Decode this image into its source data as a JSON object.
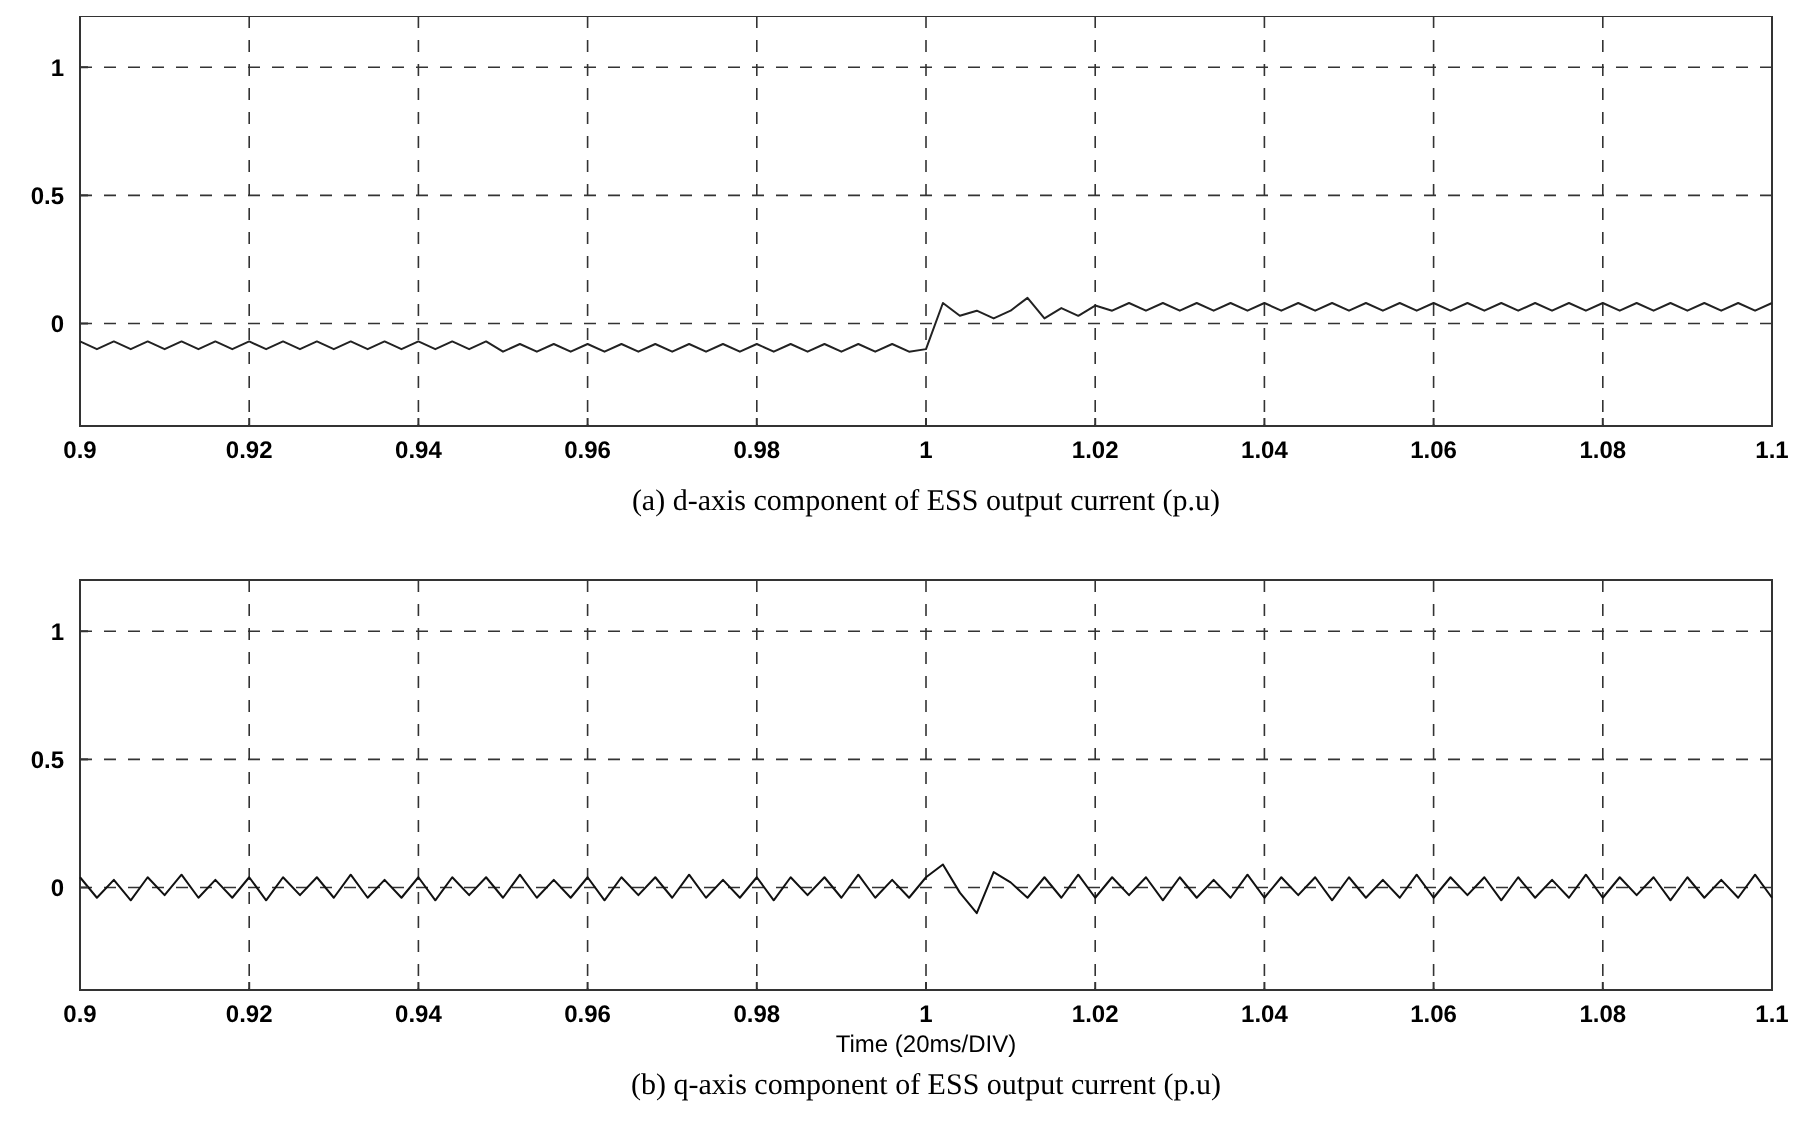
{
  "chart_data": [
    {
      "type": "line",
      "title": "(a) d-axis component of ESS output current (p.u)",
      "x": [
        0.9,
        0.902,
        0.904,
        0.906,
        0.908,
        0.91,
        0.912,
        0.914,
        0.916,
        0.918,
        0.92,
        0.922,
        0.924,
        0.926,
        0.928,
        0.93,
        0.932,
        0.934,
        0.936,
        0.938,
        0.94,
        0.942,
        0.944,
        0.946,
        0.948,
        0.95,
        0.952,
        0.954,
        0.956,
        0.958,
        0.96,
        0.962,
        0.964,
        0.966,
        0.968,
        0.97,
        0.972,
        0.974,
        0.976,
        0.978,
        0.98,
        0.982,
        0.984,
        0.986,
        0.988,
        0.99,
        0.992,
        0.994,
        0.996,
        0.998,
        1,
        1.002,
        1.004,
        1.006,
        1.008,
        1.01,
        1.012,
        1.014,
        1.016,
        1.018,
        1.02,
        1.022,
        1.024,
        1.026,
        1.028,
        1.03,
        1.032,
        1.034,
        1.036,
        1.038,
        1.04,
        1.042,
        1.044,
        1.046,
        1.048,
        1.05,
        1.052,
        1.054,
        1.056,
        1.058,
        1.06,
        1.062,
        1.064,
        1.066,
        1.068,
        1.07,
        1.072,
        1.074,
        1.076,
        1.078,
        1.08,
        1.082,
        1.084,
        1.086,
        1.088,
        1.09,
        1.092,
        1.094,
        1.096,
        1.098,
        1.1
      ],
      "series": [
        {
          "color": "#222222",
          "values": [
            -0.07,
            -0.1,
            -0.07,
            -0.1,
            -0.07,
            -0.1,
            -0.07,
            -0.1,
            -0.07,
            -0.1,
            -0.07,
            -0.1,
            -0.07,
            -0.1,
            -0.07,
            -0.1,
            -0.07,
            -0.1,
            -0.07,
            -0.1,
            -0.07,
            -0.1,
            -0.07,
            -0.1,
            -0.07,
            -0.11,
            -0.08,
            -0.11,
            -0.08,
            -0.11,
            -0.08,
            -0.11,
            -0.08,
            -0.11,
            -0.08,
            -0.11,
            -0.08,
            -0.11,
            -0.08,
            -0.11,
            -0.08,
            -0.11,
            -0.08,
            -0.11,
            -0.08,
            -0.11,
            -0.08,
            -0.11,
            -0.08,
            -0.11,
            -0.1,
            0.08,
            0.03,
            0.05,
            0.02,
            0.05,
            0.1,
            0.02,
            0.06,
            0.03,
            0.07,
            0.05,
            0.08,
            0.05,
            0.08,
            0.05,
            0.08,
            0.05,
            0.08,
            0.05,
            0.08,
            0.05,
            0.08,
            0.05,
            0.08,
            0.05,
            0.08,
            0.05,
            0.08,
            0.05,
            0.08,
            0.05,
            0.08,
            0.05,
            0.08,
            0.05,
            0.08,
            0.05,
            0.08,
            0.05,
            0.08,
            0.05,
            0.08,
            0.05,
            0.08,
            0.05,
            0.08,
            0.05,
            0.08,
            0.05,
            0.08
          ]
        }
      ],
      "xlim": [
        0.9,
        1.1
      ],
      "xticks": [
        0.9,
        0.92,
        0.94,
        0.96,
        0.98,
        1,
        1.02,
        1.04,
        1.06,
        1.08,
        1.1
      ],
      "ylim": [
        -0.4,
        1.2
      ],
      "yticks": [
        0,
        0.5,
        1
      ],
      "grid": true,
      "line_style": "solid",
      "marker": "none"
    },
    {
      "type": "line",
      "title": "(b) q-axis component of ESS output current (p.u)",
      "xlabel": "Time (20ms/DIV)",
      "x": [
        0.9,
        0.902,
        0.904,
        0.906,
        0.908,
        0.91,
        0.912,
        0.914,
        0.916,
        0.918,
        0.92,
        0.922,
        0.924,
        0.926,
        0.928,
        0.93,
        0.932,
        0.934,
        0.936,
        0.938,
        0.94,
        0.942,
        0.944,
        0.946,
        0.948,
        0.95,
        0.952,
        0.954,
        0.956,
        0.958,
        0.96,
        0.962,
        0.964,
        0.966,
        0.968,
        0.97,
        0.972,
        0.974,
        0.976,
        0.978,
        0.98,
        0.982,
        0.984,
        0.986,
        0.988,
        0.99,
        0.992,
        0.994,
        0.996,
        0.998,
        1,
        1.002,
        1.004,
        1.006,
        1.008,
        1.01,
        1.012,
        1.014,
        1.016,
        1.018,
        1.02,
        1.022,
        1.024,
        1.026,
        1.028,
        1.03,
        1.032,
        1.034,
        1.036,
        1.038,
        1.04,
        1.042,
        1.044,
        1.046,
        1.048,
        1.05,
        1.052,
        1.054,
        1.056,
        1.058,
        1.06,
        1.062,
        1.064,
        1.066,
        1.068,
        1.07,
        1.072,
        1.074,
        1.076,
        1.078,
        1.08,
        1.082,
        1.084,
        1.086,
        1.088,
        1.09,
        1.092,
        1.094,
        1.096,
        1.098,
        1.1
      ],
      "series": [
        {
          "color": "#111111",
          "values": [
            0.04,
            -0.04,
            0.03,
            -0.05,
            0.04,
            -0.03,
            0.05,
            -0.04,
            0.03,
            -0.04,
            0.04,
            -0.05,
            0.04,
            -0.03,
            0.04,
            -0.04,
            0.05,
            -0.04,
            0.03,
            -0.04,
            0.04,
            -0.05,
            0.04,
            -0.03,
            0.04,
            -0.04,
            0.05,
            -0.04,
            0.03,
            -0.04,
            0.04,
            -0.05,
            0.04,
            -0.03,
            0.04,
            -0.04,
            0.05,
            -0.04,
            0.03,
            -0.04,
            0.04,
            -0.05,
            0.04,
            -0.03,
            0.04,
            -0.04,
            0.05,
            -0.04,
            0.03,
            -0.04,
            0.04,
            0.09,
            -0.02,
            -0.1,
            0.06,
            0.02,
            -0.04,
            0.04,
            -0.04,
            0.05,
            -0.04,
            0.04,
            -0.03,
            0.04,
            -0.05,
            0.04,
            -0.04,
            0.03,
            -0.04,
            0.05,
            -0.04,
            0.04,
            -0.03,
            0.04,
            -0.05,
            0.04,
            -0.04,
            0.03,
            -0.04,
            0.05,
            -0.04,
            0.04,
            -0.03,
            0.04,
            -0.05,
            0.04,
            -0.04,
            0.03,
            -0.04,
            0.05,
            -0.04,
            0.04,
            -0.03,
            0.04,
            -0.05,
            0.04,
            -0.04,
            0.03,
            -0.04,
            0.05,
            -0.04
          ]
        }
      ],
      "xlim": [
        0.9,
        1.1
      ],
      "xticks": [
        0.9,
        0.92,
        0.94,
        0.96,
        0.98,
        1,
        1.02,
        1.04,
        1.06,
        1.08,
        1.1
      ],
      "ylim": [
        -0.4,
        1.2
      ],
      "yticks": [
        0,
        0.5,
        1
      ],
      "grid": true,
      "line_style": "solid",
      "marker": "none"
    }
  ]
}
